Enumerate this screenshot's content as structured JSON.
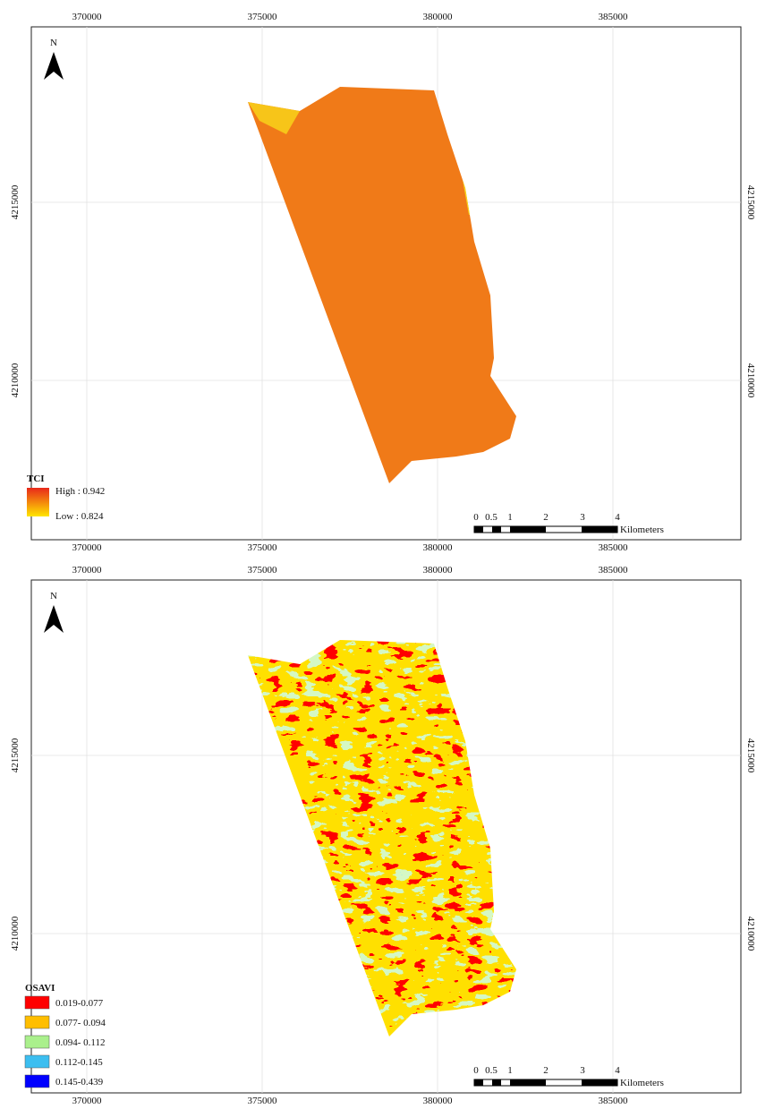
{
  "maps": [
    {
      "north": "N",
      "x_labels_top": [
        "370000",
        "375000",
        "380000",
        "385000"
      ],
      "x_labels_bottom": [
        "370000",
        "375000",
        "380000",
        "385000"
      ],
      "y_labels_left": [
        "4215000",
        "4210000"
      ],
      "y_labels_right": [
        "4215000",
        "4210000"
      ],
      "legend": {
        "title": "TCI",
        "high": "High : 0.942",
        "low": "Low : 0.824",
        "high_color": "#e8281a",
        "low_color": "#ffe600"
      },
      "scale": {
        "labels": [
          "0",
          "0.5",
          "1",
          "2",
          "3",
          "4"
        ],
        "unit": "Kilometers"
      }
    },
    {
      "north": "N",
      "x_labels_top": [
        "370000",
        "375000",
        "380000",
        "385000"
      ],
      "x_labels_bottom": [
        "370000",
        "375000",
        "380000",
        "385000"
      ],
      "y_labels_left": [
        "4215000",
        "4210000"
      ],
      "y_labels_right": [
        "4215000",
        "4210000"
      ],
      "legend": {
        "title": "OSAVI",
        "items": [
          {
            "label": "0.019-0.077",
            "color": "#ff0000"
          },
          {
            "label": "0.077- 0.094",
            "color": "#ffbe00"
          },
          {
            "label": "0.094- 0.112",
            "color": "#aaf08c"
          },
          {
            "label": "0.112-0.145",
            "color": "#3cbef0"
          },
          {
            "label": "0.145-0.439",
            "color": "#0000ff"
          }
        ]
      },
      "scale": {
        "labels": [
          "0",
          "0.5",
          "1",
          "2",
          "3",
          "4"
        ],
        "unit": "Kilometers"
      }
    }
  ]
}
